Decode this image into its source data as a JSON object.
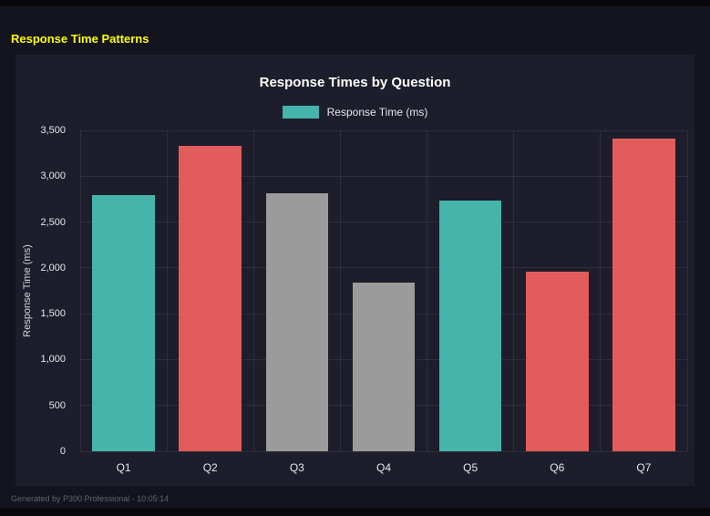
{
  "page": {
    "title": "Response Time Patterns",
    "footer": "Generated by P300 Professional - 10:05:14"
  },
  "chart_data": {
    "type": "bar",
    "title": "Response Times by Question",
    "legend": [
      {
        "label": "Response Time (ms)",
        "color": "#45b5ab"
      }
    ],
    "legend_position": "top",
    "categories": [
      "Q1",
      "Q2",
      "Q3",
      "Q4",
      "Q5",
      "Q6",
      "Q7"
    ],
    "values": [
      2790,
      3330,
      2810,
      1840,
      2730,
      1960,
      3410
    ],
    "bar_colors": [
      "#45b5ab",
      "#e25c5c",
      "#9b9b9b",
      "#9b9b9b",
      "#45b5ab",
      "#e25c5c",
      "#e25c5c"
    ],
    "xlabel": "",
    "ylabel": "Response Time (ms)",
    "ylim": [
      0,
      3500
    ],
    "ytick_step": 500,
    "ytick_labels": [
      "0",
      "500",
      "1,000",
      "1,500",
      "2,000",
      "2,500",
      "3,000",
      "3,500"
    ],
    "grid": true
  }
}
